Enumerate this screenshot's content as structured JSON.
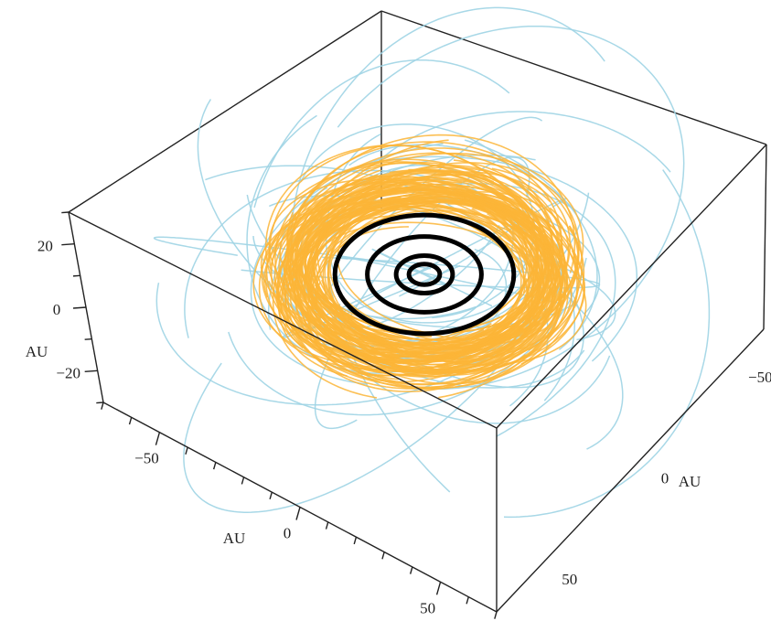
{
  "chart_data": {
    "type": "3d-line",
    "title": "",
    "axes": {
      "x": {
        "label": "AU",
        "range": [
          -70,
          70
        ],
        "ticks": [
          -50,
          0,
          50
        ],
        "tick_labels": [
          "−50",
          "0",
          "50"
        ]
      },
      "y": {
        "label": "AU",
        "range": [
          -70,
          70
        ],
        "ticks": [
          -50,
          0,
          50
        ],
        "tick_labels": [
          "−50",
          "0",
          "50"
        ]
      },
      "z": {
        "label": "AU",
        "range": [
          -30,
          30
        ],
        "ticks": [
          -20,
          0,
          20
        ],
        "tick_labels": [
          "−20",
          "0",
          "20"
        ]
      }
    },
    "series": [
      {
        "kind": "planet-orbits",
        "color": "#000000",
        "radii_au": [
          5.2,
          9.5,
          19.2,
          30.1
        ]
      },
      {
        "kind": "orbits-warm",
        "color": "#fbb537",
        "count": 120,
        "a_range_au": [
          38,
          50
        ],
        "max_inclination_deg": 12
      },
      {
        "kind": "orbits-cold",
        "color": "#9ed4e4",
        "count": 45,
        "a_range_au": [
          30,
          80
        ],
        "max_inclination_deg": 45
      }
    ],
    "grid": false,
    "legend": "none"
  }
}
